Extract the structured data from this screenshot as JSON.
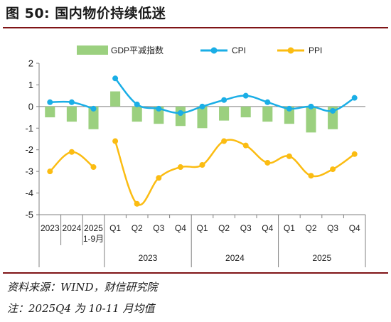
{
  "figure": {
    "title": "图 50:  国内物价持续低迷",
    "source": "资料来源：WIND，财信研究院",
    "note": "注：2025Q4 为 10-11 月均值"
  },
  "colors": {
    "gdp_bar": "#9bd07f",
    "cpi": "#1aaee6",
    "ppi": "#fbbc12",
    "rule": "#7f1416",
    "axis": "#808080"
  },
  "chart_data": {
    "type": "bar+line",
    "categories": [
      "2023",
      "2024",
      "2025\n1-9月",
      "Q1",
      "Q2",
      "Q3",
      "Q4",
      "Q1",
      "Q2",
      "Q3",
      "Q4",
      "Q1",
      "Q2",
      "Q3",
      "Q4"
    ],
    "category_groups": [
      {
        "label": "2023",
        "from": 3,
        "to": 6
      },
      {
        "label": "2024",
        "from": 7,
        "to": 10
      },
      {
        "label": "2025",
        "from": 11,
        "to": 14
      }
    ],
    "series": [
      {
        "name": "GDP平减指数",
        "type": "bar",
        "values": [
          -0.5,
          -0.7,
          -1.05,
          0.7,
          -0.7,
          -0.8,
          -0.9,
          -1.0,
          -0.65,
          -0.5,
          -0.7,
          -0.8,
          -1.2,
          -1.05,
          null
        ]
      },
      {
        "name": "CPI",
        "type": "line",
        "segments": [
          [
            0,
            2
          ],
          [
            3,
            14
          ]
        ],
        "values": [
          0.2,
          0.2,
          -0.1,
          1.3,
          0.1,
          -0.1,
          -0.3,
          0.0,
          0.3,
          0.5,
          0.2,
          -0.1,
          0.0,
          -0.2,
          0.4
        ]
      },
      {
        "name": "PPI",
        "type": "line",
        "segments": [
          [
            0,
            2
          ],
          [
            3,
            14
          ]
        ],
        "values": [
          -3.0,
          -2.1,
          -2.8,
          -1.6,
          -4.5,
          -3.3,
          -2.8,
          -2.7,
          -1.6,
          -1.8,
          -2.6,
          -2.3,
          -3.2,
          -2.9,
          -2.2
        ]
      }
    ],
    "y_ticks": [
      "2",
      "1",
      "0",
      "-1",
      "-2",
      "-3",
      "-4",
      "-5"
    ],
    "ylim": [
      -5,
      2
    ],
    "grid": false,
    "legend_position": "top"
  }
}
